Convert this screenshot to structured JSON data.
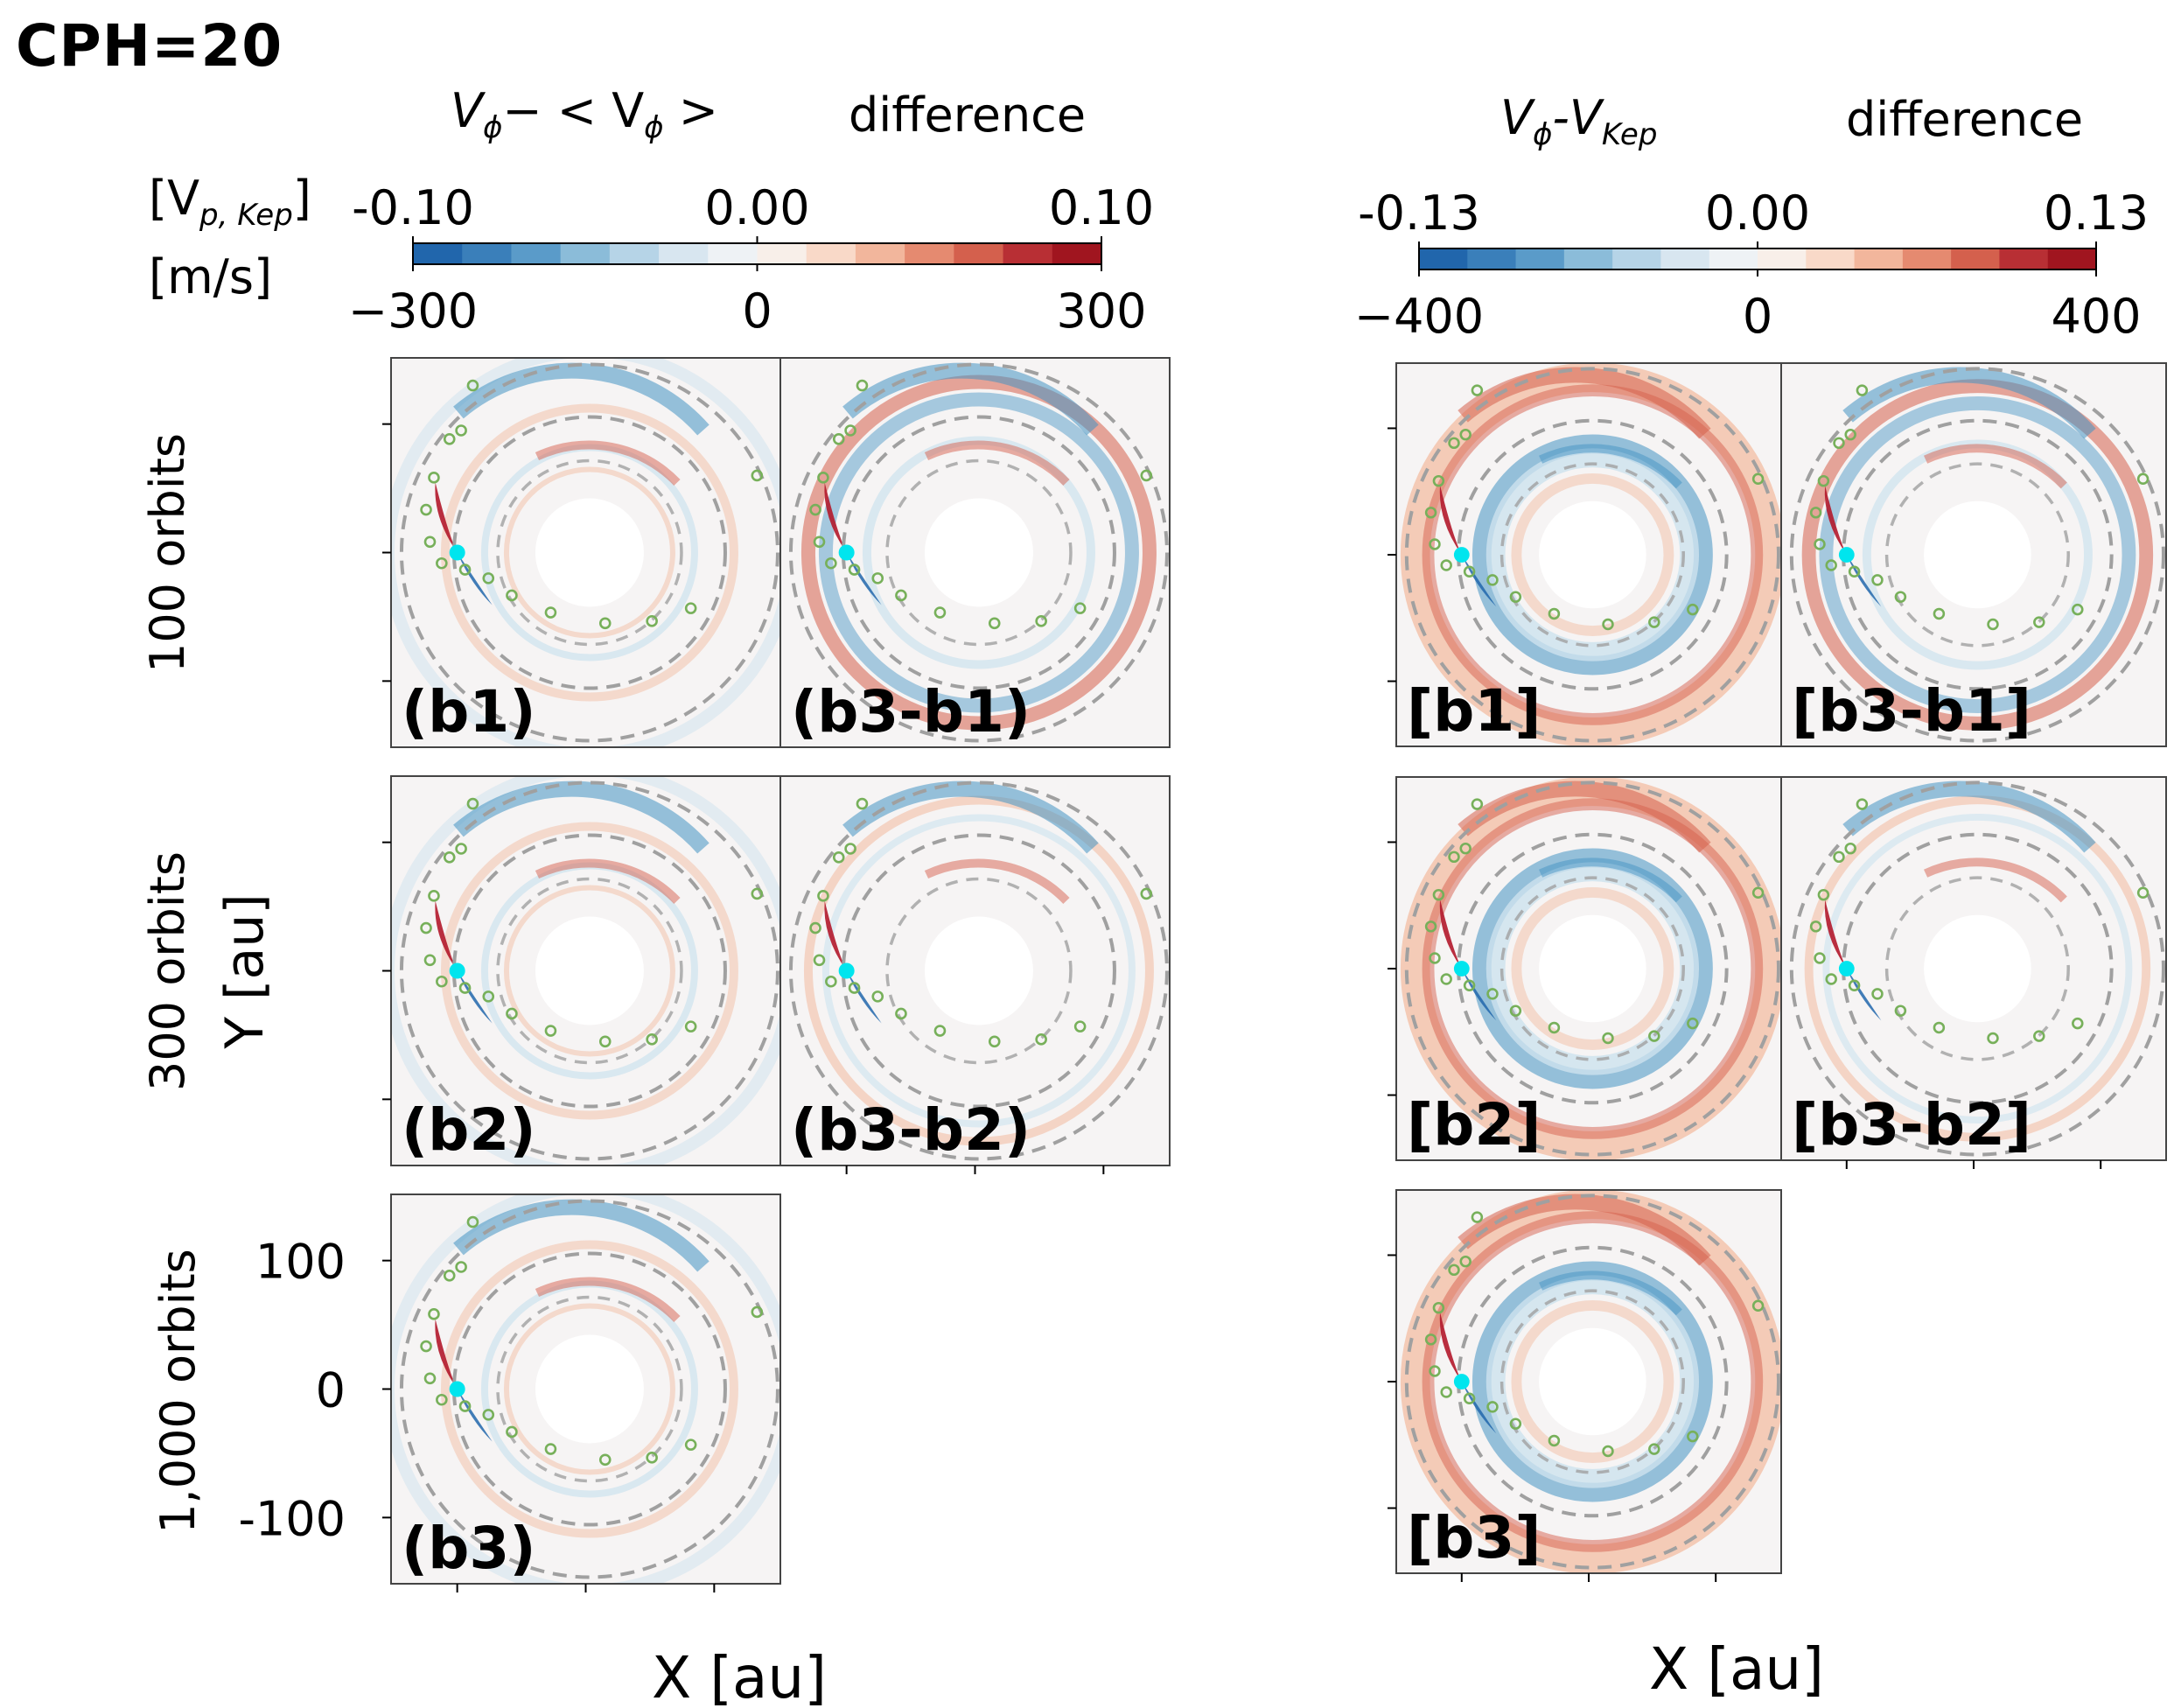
{
  "header": {
    "title": "CPH=20"
  },
  "left": {
    "colorbar": {
      "quantity_html": "V<tspan font-style='italic'></tspan>",
      "quantity_base": "V",
      "quantity_sub": "ϕ",
      "quantity_mid": "− < V",
      "quantity_sub2": "ϕ",
      "quantity_end": " >",
      "label_right": "difference",
      "unit_top": "[V",
      "unit_top_sub": "p, Kep",
      "unit_top_end": "]",
      "unit_bottom": "[m/s]",
      "top_ticks": [
        "-0.10",
        "0.00",
        "0.10"
      ],
      "bottom_ticks": [
        "−300",
        "0",
        "300"
      ],
      "colors": [
        "#2166ac",
        "#3a7fba",
        "#5a9bc9",
        "#8bbcd9",
        "#b6d4e7",
        "#d8e6f0",
        "#eef2f5",
        "#f8efe9",
        "#f9d9c8",
        "#f2b69c",
        "#e58a70",
        "#d4604d",
        "#b82f34",
        "#a0151f"
      ]
    },
    "axis": {
      "y_label_sub": "Y [au]",
      "x_label": "X [au]",
      "y_ticks": [
        "100",
        "0",
        "-100"
      ]
    },
    "rows": [
      {
        "row_label": "100 orbits",
        "panels": [
          "(b1)",
          "(b3-b1)"
        ]
      },
      {
        "row_label": "300 orbits",
        "panels": [
          "(b2)",
          "(b3-b2)"
        ]
      },
      {
        "row_label": "1,000 orbits",
        "panels": [
          "(b3)"
        ]
      }
    ]
  },
  "right": {
    "colorbar": {
      "quantity_base": "V",
      "quantity_sub": "ϕ",
      "quantity_mid": "-V",
      "quantity_sub2": "Kep",
      "label_right": "difference",
      "top_ticks": [
        "-0.13",
        "0.00",
        "0.13"
      ],
      "bottom_ticks": [
        "−400",
        "0",
        "400"
      ],
      "colors": [
        "#2166ac",
        "#3a7fba",
        "#5a9bc9",
        "#8bbcd9",
        "#b6d4e7",
        "#d8e6f0",
        "#eef2f5",
        "#f8efe9",
        "#f9d9c8",
        "#f2b69c",
        "#e58a70",
        "#d4604d",
        "#b82f34",
        "#a0151f"
      ]
    },
    "axis": {
      "x_label": "X [au]"
    },
    "rows": [
      {
        "panels": [
          "[b1]",
          "[b3-b1]"
        ]
      },
      {
        "panels": [
          "[b2]",
          "[b3-b2]"
        ]
      },
      {
        "panels": [
          "[b3]"
        ]
      }
    ]
  },
  "chart_data": {
    "type": "heatmap",
    "colormap": "RdBu_r",
    "y_ticks": [
      100,
      0,
      -100
    ],
    "left_colorbar": {
      "range_vpkep": [
        -0.1,
        0.1
      ],
      "range_ms": [
        -300,
        300
      ]
    },
    "right_colorbar": {
      "range_vpkep": [
        -0.13,
        0.13
      ],
      "range_ms": [
        -400,
        400
      ]
    },
    "planet_color": "#00e5ee",
    "marker_color": "#77b05a",
    "ring_color": "#a0a0a0"
  }
}
